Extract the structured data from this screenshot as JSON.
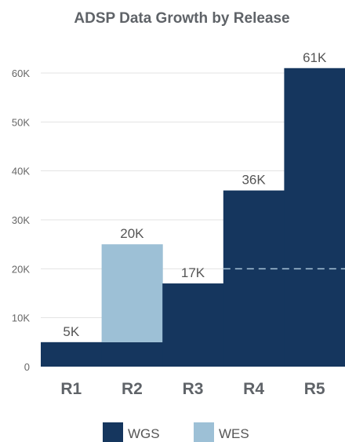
{
  "chart_data": {
    "type": "bar",
    "title": "ADSP Data Growth by Release",
    "categories": [
      "R1",
      "R2",
      "R3",
      "R4",
      "R5"
    ],
    "series": [
      {
        "name": "WGS",
        "color": "#15365e",
        "values": [
          5000,
          5000,
          17000,
          36000,
          61000
        ]
      },
      {
        "name": "WES",
        "color": "#9dc0d6",
        "values": [
          0,
          20000,
          0,
          0,
          0
        ]
      }
    ],
    "data_labels": [
      "5K",
      "20K",
      "17K",
      "36K",
      "61K"
    ],
    "yticks": [
      0,
      10000,
      20000,
      30000,
      40000,
      50000,
      60000
    ],
    "ytick_labels": [
      "0",
      "10K",
      "20K",
      "30K",
      "40K",
      "50K",
      "60K"
    ],
    "ylim": [
      0,
      60000
    ],
    "reference_line": 20000,
    "grid": true,
    "legend_position": "bottom"
  }
}
